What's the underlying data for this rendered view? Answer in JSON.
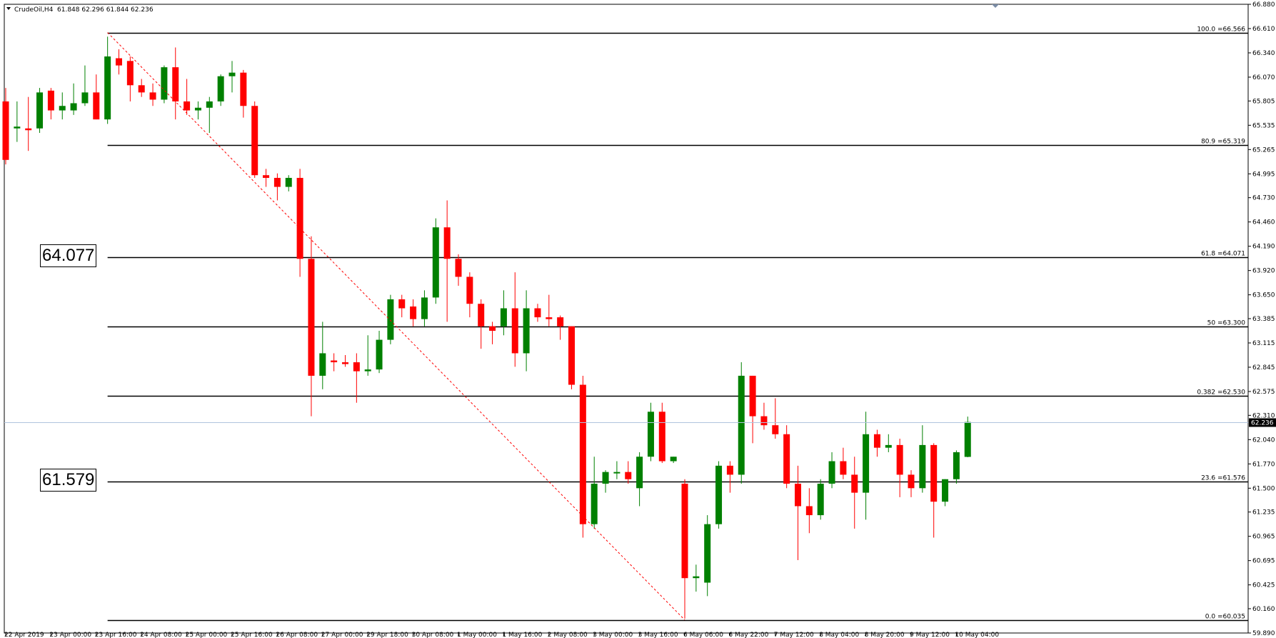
{
  "header": {
    "symbol_label": "CrudeOil,H4",
    "ohlc_values": "61.848 62.296 61.844 62.236"
  },
  "price_marker": {
    "value": "62.236",
    "price": 62.236
  },
  "big_labels": [
    {
      "text": "64.077",
      "price": 64.077
    },
    {
      "text": "61.579",
      "price": 61.579
    }
  ],
  "colors": {
    "bull": "#008000",
    "bear": "#ff0000",
    "fib_line": "#000000",
    "trend_line": "#ff0000",
    "current_line": "#b0c4de",
    "marker_bg": "#000000"
  },
  "chart_data": {
    "type": "candlestick",
    "symbol": "CrudeOil",
    "timeframe": "H4",
    "ylim": [
      59.89,
      66.88
    ],
    "y_ticks": [
      "66.880",
      "66.610",
      "66.340",
      "66.070",
      "65.805",
      "65.535",
      "65.265",
      "64.995",
      "64.730",
      "64.460",
      "64.190",
      "63.920",
      "63.650",
      "63.385",
      "63.115",
      "62.845",
      "62.575",
      "62.310",
      "62.040",
      "61.770",
      "61.500",
      "61.235",
      "60.965",
      "60.695",
      "60.425",
      "60.160",
      "59.890"
    ],
    "x_labels": [
      {
        "label": "22 Apr 2019",
        "bar": 0
      },
      {
        "label": "23 Apr 00:00",
        "bar": 4
      },
      {
        "label": "23 Apr 16:00",
        "bar": 8
      },
      {
        "label": "24 Apr 08:00",
        "bar": 12
      },
      {
        "label": "25 Apr 00:00",
        "bar": 16
      },
      {
        "label": "25 Apr 16:00",
        "bar": 20
      },
      {
        "label": "26 Apr 08:00",
        "bar": 24
      },
      {
        "label": "27 Apr 00:00",
        "bar": 28
      },
      {
        "label": "29 Apr 18:00",
        "bar": 32
      },
      {
        "label": "30 Apr 08:00",
        "bar": 36
      },
      {
        "label": "1 May 00:00",
        "bar": 40
      },
      {
        "label": "1 May 16:00",
        "bar": 44
      },
      {
        "label": "2 May 08:00",
        "bar": 48
      },
      {
        "label": "3 May 00:00",
        "bar": 52
      },
      {
        "label": "3 May 16:00",
        "bar": 56
      },
      {
        "label": "6 May 06:00",
        "bar": 60
      },
      {
        "label": "6 May 22:00",
        "bar": 64
      },
      {
        "label": "7 May 12:00",
        "bar": 68
      },
      {
        "label": "8 May 04:00",
        "bar": 72
      },
      {
        "label": "8 May 20:00",
        "bar": 76
      },
      {
        "label": "9 May 12:00",
        "bar": 80
      },
      {
        "label": "10 May 04:00",
        "bar": 84
      }
    ],
    "candles": [
      {
        "o": 65.8,
        "h": 65.95,
        "l": 65.1,
        "c": 65.15
      },
      {
        "o": 65.5,
        "h": 65.8,
        "l": 65.35,
        "c": 65.52
      },
      {
        "o": 65.5,
        "h": 65.85,
        "l": 65.25,
        "c": 65.48
      },
      {
        "o": 65.5,
        "h": 65.95,
        "l": 65.45,
        "c": 65.9
      },
      {
        "o": 65.92,
        "h": 65.95,
        "l": 65.6,
        "c": 65.7
      },
      {
        "o": 65.7,
        "h": 65.9,
        "l": 65.6,
        "c": 65.75
      },
      {
        "o": 65.7,
        "h": 66.0,
        "l": 65.65,
        "c": 65.78
      },
      {
        "o": 65.78,
        "h": 66.2,
        "l": 65.75,
        "c": 65.9
      },
      {
        "o": 65.9,
        "h": 66.1,
        "l": 65.6,
        "c": 65.6
      },
      {
        "o": 65.6,
        "h": 66.52,
        "l": 65.55,
        "c": 66.3
      },
      {
        "o": 66.28,
        "h": 66.38,
        "l": 66.1,
        "c": 66.2
      },
      {
        "o": 66.25,
        "h": 66.3,
        "l": 65.8,
        "c": 65.98
      },
      {
        "o": 65.98,
        "h": 66.05,
        "l": 65.85,
        "c": 65.9
      },
      {
        "o": 65.9,
        "h": 66.0,
        "l": 65.75,
        "c": 65.82
      },
      {
        "o": 65.82,
        "h": 66.2,
        "l": 65.78,
        "c": 66.18
      },
      {
        "o": 66.18,
        "h": 66.4,
        "l": 65.6,
        "c": 65.8
      },
      {
        "o": 65.8,
        "h": 66.05,
        "l": 65.65,
        "c": 65.7
      },
      {
        "o": 65.7,
        "h": 65.8,
        "l": 65.6,
        "c": 65.73
      },
      {
        "o": 65.73,
        "h": 65.85,
        "l": 65.45,
        "c": 65.8
      },
      {
        "o": 65.8,
        "h": 66.1,
        "l": 65.75,
        "c": 66.08
      },
      {
        "o": 66.08,
        "h": 66.25,
        "l": 65.9,
        "c": 66.12
      },
      {
        "o": 66.12,
        "h": 66.15,
        "l": 65.62,
        "c": 65.75
      },
      {
        "o": 65.75,
        "h": 65.8,
        "l": 64.95,
        "c": 64.98
      },
      {
        "o": 64.98,
        "h": 65.05,
        "l": 64.85,
        "c": 64.95
      },
      {
        "o": 64.95,
        "h": 65.0,
        "l": 64.7,
        "c": 64.85
      },
      {
        "o": 64.85,
        "h": 64.98,
        "l": 64.8,
        "c": 64.95
      },
      {
        "o": 64.95,
        "h": 65.05,
        "l": 63.85,
        "c": 64.05
      },
      {
        "o": 64.05,
        "h": 64.3,
        "l": 62.3,
        "c": 62.75
      },
      {
        "o": 62.75,
        "h": 63.35,
        "l": 62.6,
        "c": 63.0
      },
      {
        "o": 62.92,
        "h": 63.0,
        "l": 62.8,
        "c": 62.9
      },
      {
        "o": 62.9,
        "h": 62.98,
        "l": 62.85,
        "c": 62.88
      },
      {
        "o": 62.9,
        "h": 63.0,
        "l": 62.45,
        "c": 62.8
      },
      {
        "o": 62.8,
        "h": 63.2,
        "l": 62.75,
        "c": 62.82
      },
      {
        "o": 62.82,
        "h": 63.25,
        "l": 62.78,
        "c": 63.15
      },
      {
        "o": 63.15,
        "h": 63.65,
        "l": 63.1,
        "c": 63.6
      },
      {
        "o": 63.6,
        "h": 63.65,
        "l": 63.4,
        "c": 63.5
      },
      {
        "o": 63.52,
        "h": 63.6,
        "l": 63.3,
        "c": 63.38
      },
      {
        "o": 63.38,
        "h": 63.7,
        "l": 63.3,
        "c": 63.62
      },
      {
        "o": 63.62,
        "h": 64.5,
        "l": 63.55,
        "c": 64.4
      },
      {
        "o": 64.4,
        "h": 64.7,
        "l": 63.35,
        "c": 64.05
      },
      {
        "o": 64.05,
        "h": 64.1,
        "l": 63.75,
        "c": 63.85
      },
      {
        "o": 63.85,
        "h": 63.9,
        "l": 63.4,
        "c": 63.55
      },
      {
        "o": 63.55,
        "h": 63.6,
        "l": 63.05,
        "c": 63.3
      },
      {
        "o": 63.3,
        "h": 63.35,
        "l": 63.1,
        "c": 63.25
      },
      {
        "o": 63.3,
        "h": 63.7,
        "l": 63.2,
        "c": 63.5
      },
      {
        "o": 63.5,
        "h": 63.9,
        "l": 62.85,
        "c": 63.0
      },
      {
        "o": 63.0,
        "h": 63.7,
        "l": 62.8,
        "c": 63.5
      },
      {
        "o": 63.5,
        "h": 63.55,
        "l": 63.35,
        "c": 63.4
      },
      {
        "o": 63.4,
        "h": 63.65,
        "l": 63.3,
        "c": 63.38
      },
      {
        "o": 63.4,
        "h": 63.42,
        "l": 63.15,
        "c": 63.3
      },
      {
        "o": 63.3,
        "h": 63.3,
        "l": 62.6,
        "c": 62.65
      },
      {
        "o": 62.65,
        "h": 62.75,
        "l": 60.95,
        "c": 61.1
      },
      {
        "o": 61.1,
        "h": 61.85,
        "l": 61.05,
        "c": 61.55
      },
      {
        "o": 61.55,
        "h": 61.7,
        "l": 61.45,
        "c": 61.68
      },
      {
        "o": 61.68,
        "h": 61.8,
        "l": 61.6,
        "c": 61.68
      },
      {
        "o": 61.68,
        "h": 61.8,
        "l": 61.55,
        "c": 61.6
      },
      {
        "o": 61.5,
        "h": 61.9,
        "l": 61.3,
        "c": 61.85
      },
      {
        "o": 61.85,
        "h": 62.45,
        "l": 61.8,
        "c": 62.35
      },
      {
        "o": 62.35,
        "h": 62.45,
        "l": 61.78,
        "c": 61.8
      },
      {
        "o": 61.8,
        "h": 61.85,
        "l": 61.78,
        "c": 61.85
      },
      {
        "o": 61.55,
        "h": 61.6,
        "l": 60.05,
        "c": 60.5
      },
      {
        "o": 60.5,
        "h": 60.65,
        "l": 60.35,
        "c": 60.52
      },
      {
        "o": 60.45,
        "h": 61.2,
        "l": 60.3,
        "c": 61.1
      },
      {
        "o": 61.1,
        "h": 61.8,
        "l": 61.05,
        "c": 61.75
      },
      {
        "o": 61.75,
        "h": 61.8,
        "l": 61.45,
        "c": 61.65
      },
      {
        "o": 61.65,
        "h": 62.9,
        "l": 61.55,
        "c": 62.75
      },
      {
        "o": 62.75,
        "h": 62.75,
        "l": 62.0,
        "c": 62.3
      },
      {
        "o": 62.3,
        "h": 62.45,
        "l": 62.15,
        "c": 62.2
      },
      {
        "o": 62.2,
        "h": 62.5,
        "l": 62.05,
        "c": 62.1
      },
      {
        "o": 62.1,
        "h": 62.2,
        "l": 61.5,
        "c": 61.55
      },
      {
        "o": 61.55,
        "h": 61.75,
        "l": 60.7,
        "c": 61.3
      },
      {
        "o": 61.3,
        "h": 61.5,
        "l": 61.0,
        "c": 61.2
      },
      {
        "o": 61.2,
        "h": 61.6,
        "l": 61.15,
        "c": 61.55
      },
      {
        "o": 61.55,
        "h": 61.9,
        "l": 61.5,
        "c": 61.8
      },
      {
        "o": 61.8,
        "h": 61.95,
        "l": 61.6,
        "c": 61.65
      },
      {
        "o": 61.65,
        "h": 61.85,
        "l": 61.05,
        "c": 61.45
      },
      {
        "o": 61.45,
        "h": 62.35,
        "l": 61.15,
        "c": 62.1
      },
      {
        "o": 62.1,
        "h": 62.15,
        "l": 61.85,
        "c": 61.95
      },
      {
        "o": 61.95,
        "h": 62.1,
        "l": 61.9,
        "c": 61.98
      },
      {
        "o": 61.98,
        "h": 62.05,
        "l": 61.4,
        "c": 61.65
      },
      {
        "o": 61.65,
        "h": 61.7,
        "l": 61.4,
        "c": 61.5
      },
      {
        "o": 61.5,
        "h": 62.2,
        "l": 61.45,
        "c": 61.98
      },
      {
        "o": 61.98,
        "h": 62.0,
        "l": 60.95,
        "c": 61.35
      },
      {
        "o": 61.35,
        "h": 61.6,
        "l": 61.3,
        "c": 61.6
      },
      {
        "o": 61.6,
        "h": 61.92,
        "l": 61.55,
        "c": 61.9
      },
      {
        "o": 61.848,
        "h": 62.296,
        "l": 61.844,
        "c": 62.236
      }
    ],
    "fib_levels": [
      {
        "label": "100.0  =66.566",
        "price": 66.566
      },
      {
        "label": "80.9  =65.319",
        "price": 65.319
      },
      {
        "label": "61.8  =64.071",
        "price": 64.071
      },
      {
        "label": "50  =63.300",
        "price": 63.3
      },
      {
        "label": "0.382  =62.530",
        "price": 62.53
      },
      {
        "label": "23.6  =61.576",
        "price": 61.576
      },
      {
        "label": "0.0  =60.035",
        "price": 60.035
      }
    ],
    "trend_line": {
      "from": {
        "bar": 9,
        "price": 66.566
      },
      "to": {
        "bar": 60,
        "price": 60.035
      }
    }
  }
}
